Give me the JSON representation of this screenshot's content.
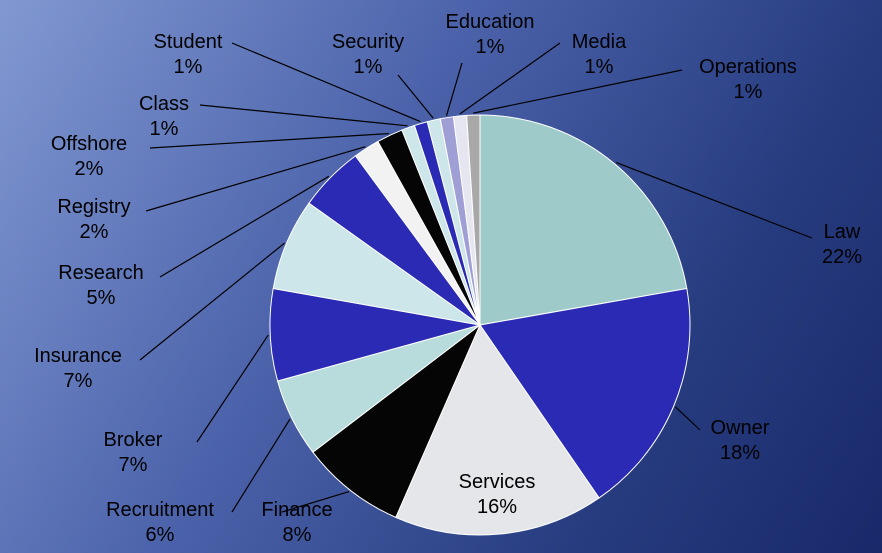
{
  "chart_data": {
    "type": "pie",
    "slices": [
      {
        "label": "Law",
        "value": 22,
        "value_text": "22%",
        "color": "#9ecbca"
      },
      {
        "label": "Owner",
        "value": 18,
        "value_text": "18%",
        "color": "#2a2ab5"
      },
      {
        "label": "Services",
        "value": 16,
        "value_text": "16%",
        "color": "#e4e6ea"
      },
      {
        "label": "Finance",
        "value": 8,
        "value_text": "8%",
        "color": "#050505"
      },
      {
        "label": "Recruitment",
        "value": 6,
        "value_text": "6%",
        "color": "#b8dcdc"
      },
      {
        "label": "Broker",
        "value": 7,
        "value_text": "7%",
        "color": "#2a2ab5"
      },
      {
        "label": "Insurance",
        "value": 7,
        "value_text": "7%",
        "color": "#cde6ea"
      },
      {
        "label": "Research",
        "value": 5,
        "value_text": "5%",
        "color": "#2a2ab5"
      },
      {
        "label": "Registry",
        "value": 2,
        "value_text": "2%",
        "color": "#f2f2f2"
      },
      {
        "label": "Offshore",
        "value": 2,
        "value_text": "2%",
        "color": "#050505"
      },
      {
        "label": "Class",
        "value": 1,
        "value_text": "1%",
        "color": "#cde6ea"
      },
      {
        "label": "Student",
        "value": 1,
        "value_text": "1%",
        "color": "#2a2ab5"
      },
      {
        "label": "Security",
        "value": 1,
        "value_text": "1%",
        "color": "#cde6ea"
      },
      {
        "label": "Education",
        "value": 1,
        "value_text": "1%",
        "color": "#9f9fd6"
      },
      {
        "label": "Media",
        "value": 1,
        "value_text": "1%",
        "color": "#e6e6f0"
      },
      {
        "label": "Operations",
        "value": 1,
        "value_text": "1%",
        "color": "#a8a8a8"
      }
    ],
    "legend": "none",
    "labels": "outside with leader lines; Services label inside slice"
  }
}
